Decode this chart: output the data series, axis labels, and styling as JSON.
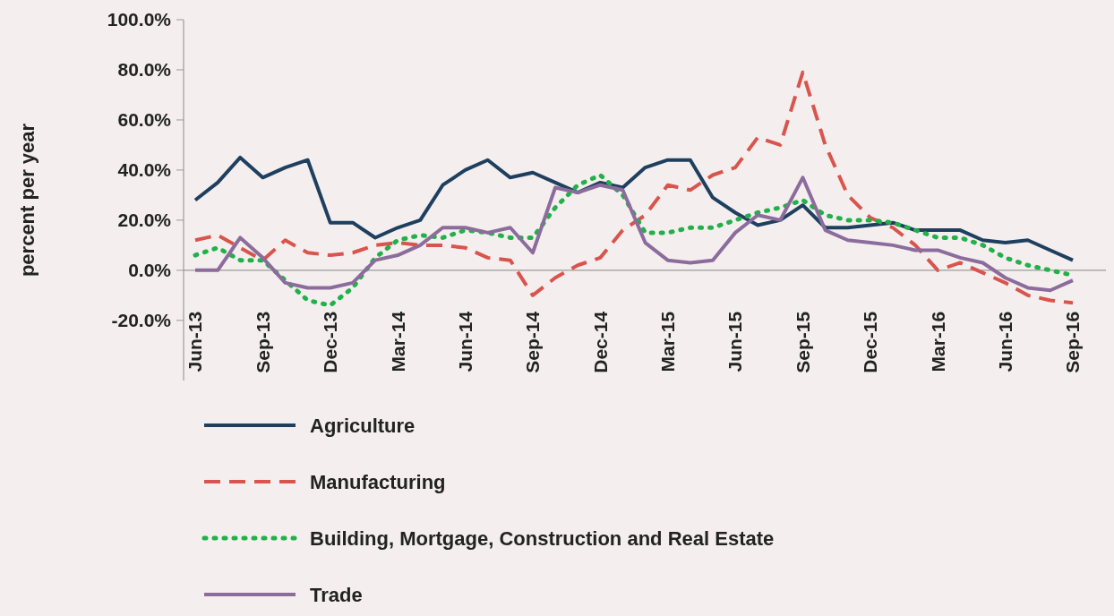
{
  "chart_data": {
    "type": "line",
    "ylabel": "percent per year",
    "categories": [
      "Jun-13",
      null,
      null,
      "Sep-13",
      null,
      null,
      "Dec-13",
      null,
      null,
      "Mar-14",
      null,
      null,
      "Jun-14",
      null,
      null,
      "Sep-14",
      null,
      null,
      "Dec-14",
      null,
      null,
      "Mar-15",
      null,
      null,
      "Jun-15",
      null,
      null,
      "Sep-15",
      null,
      null,
      "Dec-15",
      null,
      null,
      "Mar-16",
      null,
      null,
      "Jun-16",
      null,
      null,
      "Sep-16"
    ],
    "series": [
      {
        "name": "Agriculture",
        "color": "#1f3f5f",
        "line_style": "solid",
        "values": [
          28,
          35,
          45,
          37,
          41,
          44,
          19,
          19,
          13,
          17,
          20,
          34,
          40,
          44,
          37,
          39,
          35,
          31,
          35,
          33,
          41,
          44,
          44,
          29,
          23,
          18,
          20,
          26,
          17,
          17,
          18,
          19,
          16,
          16,
          16,
          12,
          11,
          12,
          8,
          4
        ]
      },
      {
        "name": "Manufacturing",
        "color": "#d9544d",
        "line_style": "dashed",
        "values": [
          12,
          14,
          9,
          4,
          12,
          7,
          6,
          7,
          10,
          11,
          10,
          10,
          9,
          5,
          4,
          -10,
          -3,
          2,
          5,
          16,
          22,
          34,
          32,
          38,
          41,
          53,
          50,
          79,
          50,
          30,
          21,
          17,
          10,
          0,
          3,
          -1,
          -5,
          -10,
          -12,
          -13
        ]
      },
      {
        "name": "Building, Mortgage, Construction and Real Estate",
        "color": "#22b04a",
        "line_style": "dotted",
        "values": [
          6,
          9,
          4,
          4,
          -4,
          -12,
          -14,
          -7,
          5,
          12,
          14,
          13,
          16,
          15,
          13,
          13,
          25,
          34,
          38,
          30,
          15,
          15,
          17,
          17,
          20,
          23,
          25,
          28,
          22,
          20,
          20,
          19,
          16,
          13,
          13,
          10,
          5,
          2,
          0,
          -2
        ]
      },
      {
        "name": "Trade",
        "color": "#8c6c9c",
        "line_style": "solid",
        "values": [
          0,
          0,
          13,
          5,
          -5,
          -7,
          -7,
          -5,
          4,
          6,
          10,
          17,
          17,
          15,
          17,
          7,
          33,
          31,
          34,
          32,
          11,
          4,
          3,
          4,
          15,
          22,
          20,
          37,
          16,
          12,
          11,
          10,
          8,
          8,
          5,
          3,
          -3,
          -7,
          -8,
          -4
        ]
      }
    ],
    "ylim": [
      -44,
      100
    ],
    "yticks": [
      {
        "value": -20,
        "label": "-20.0%"
      },
      {
        "value": 0,
        "label": "0.0%"
      },
      {
        "value": 20,
        "label": "20.0%"
      },
      {
        "value": 40,
        "label": "40.0%"
      },
      {
        "value": 60,
        "label": "60.0%"
      },
      {
        "value": 80,
        "label": "80.0%"
      },
      {
        "value": 100,
        "label": "100.0%"
      }
    ],
    "grid": false,
    "legend": "bottom"
  }
}
